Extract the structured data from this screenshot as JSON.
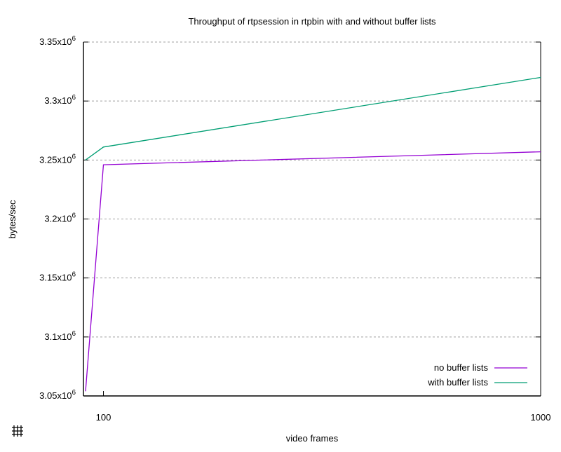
{
  "chart_data": {
    "type": "line",
    "title": "Throughput of rtpsession in rtpbin with and without buffer lists",
    "xlabel": "video frames",
    "ylabel": "bytes/sec",
    "x_scale": "log",
    "xlim": [
      90,
      1000
    ],
    "ylim": [
      3050000,
      3350000
    ],
    "grid": "horizontal-dashed",
    "legend_position": "bottom-right",
    "x_ticks": [
      {
        "value": 100,
        "label": "100"
      },
      {
        "value": 1000,
        "label": "1000"
      }
    ],
    "y_ticks": [
      {
        "value": 3050000,
        "base": "3.05x10",
        "exp": "6"
      },
      {
        "value": 3100000,
        "base": "3.1x10",
        "exp": "6"
      },
      {
        "value": 3150000,
        "base": "3.15x10",
        "exp": "6"
      },
      {
        "value": 3200000,
        "base": "3.2x10",
        "exp": "6"
      },
      {
        "value": 3250000,
        "base": "3.25x10",
        "exp": "6"
      },
      {
        "value": 3300000,
        "base": "3.3x10",
        "exp": "6"
      },
      {
        "value": 3350000,
        "base": "3.35x10",
        "exp": "6"
      }
    ],
    "series": [
      {
        "name": "no buffer lists",
        "color": "#9400d3",
        "x": [
          91,
          100,
          1000
        ],
        "y": [
          3054000,
          3246000,
          3257000
        ]
      },
      {
        "name": "with buffer lists",
        "color": "#009e73",
        "x": [
          91,
          100,
          1000
        ],
        "y": [
          3250000,
          3261000,
          3320000
        ]
      }
    ]
  },
  "toolbar": {
    "grid_icon": "grid-icon"
  }
}
